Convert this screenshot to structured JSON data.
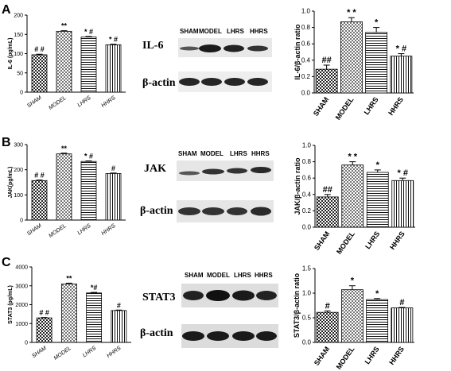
{
  "panels": [
    {
      "letter": "A",
      "blot_target": "IL-6",
      "blot_control": "β-actin",
      "lane_labels": [
        "SHAM",
        "MODEL",
        "LHRS",
        "HHRS"
      ]
    },
    {
      "letter": "B",
      "blot_target": "JAK",
      "blot_control": "β-actin",
      "lane_labels": [
        "SHAM",
        "MODEL",
        "LHRS",
        "HHRS"
      ]
    },
    {
      "letter": "C",
      "blot_target": "STAT3",
      "blot_control": "β-actin",
      "lane_labels": [
        "SHAM",
        "MODEL",
        "LHRS",
        "HHRS"
      ]
    }
  ],
  "chart_data": [
    {
      "type": "bar",
      "panel": "A",
      "role": "elisa",
      "ylabel": "IL-6  (pg/mL)",
      "categories": [
        "SHAM",
        "MODEL",
        "LHRS",
        "HHRS"
      ],
      "values": [
        97,
        158,
        143,
        123
      ],
      "errors": [
        1.5,
        1.5,
        1.5,
        1.5
      ],
      "annotations": [
        "# #",
        "**",
        "* #",
        "* #"
      ],
      "patterns": [
        "check",
        "dots",
        "hlines",
        "vlines"
      ],
      "italic_ticks": true,
      "ylim": [
        0,
        200
      ],
      "yticks": [
        0,
        50,
        100,
        150,
        200
      ]
    },
    {
      "type": "bar",
      "panel": "A",
      "role": "ratio",
      "ylabel": "IL-6/β-actin ratio",
      "categories": [
        "SHAM",
        "MODEL",
        "LHRS",
        "HHRS"
      ],
      "values": [
        0.29,
        0.87,
        0.74,
        0.45
      ],
      "errors": [
        0.05,
        0.05,
        0.06,
        0.03
      ],
      "annotations": [
        "##",
        "* *",
        "*",
        "* #"
      ],
      "patterns": [
        "check",
        "dots",
        "hlines",
        "vlines"
      ],
      "italic_ticks": false,
      "ylim": [
        0,
        1.0
      ],
      "yticks": [
        0,
        0.2,
        0.4,
        0.6,
        0.8,
        1.0
      ],
      "decimals": 1
    },
    {
      "type": "bar",
      "panel": "B",
      "role": "elisa",
      "ylabel": "JAK(pg/mL)",
      "categories": [
        "SHAM",
        "MODEL",
        "LHRS",
        "HHRS"
      ],
      "values": [
        157,
        263,
        233,
        185
      ],
      "errors": [
        2,
        3,
        2,
        2
      ],
      "annotations": [
        "# #",
        "**",
        "* #",
        "#"
      ],
      "patterns": [
        "check",
        "dots",
        "hlines",
        "vlines"
      ],
      "italic_ticks": true,
      "ylim": [
        0,
        300
      ],
      "yticks": [
        0,
        100,
        200,
        300
      ]
    },
    {
      "type": "bar",
      "panel": "B",
      "role": "ratio",
      "ylabel": "JAK/β-actin ratio",
      "categories": [
        "SHAM",
        "MODEL",
        "LHRS",
        "HHRS"
      ],
      "values": [
        0.37,
        0.76,
        0.67,
        0.57
      ],
      "errors": [
        0.03,
        0.04,
        0.03,
        0.03
      ],
      "annotations": [
        "##",
        "* *",
        "*",
        "* #"
      ],
      "patterns": [
        "check",
        "dots",
        "hlines",
        "vlines"
      ],
      "italic_ticks": false,
      "ylim": [
        0,
        1.0
      ],
      "yticks": [
        0,
        0.2,
        0.4,
        0.6,
        0.8,
        1.0
      ],
      "decimals": 1
    },
    {
      "type": "bar",
      "panel": "C",
      "role": "elisa",
      "ylabel": "STAT3 (pg/mL)",
      "categories": [
        "SHAM",
        "MODEL",
        "LHRS",
        "HHRS"
      ],
      "values": [
        1300,
        3100,
        2620,
        1690
      ],
      "errors": [
        20,
        40,
        30,
        25
      ],
      "annotations": [
        "# #",
        "**",
        "*#",
        "#"
      ],
      "patterns": [
        "check",
        "dots",
        "hlines",
        "vlines"
      ],
      "italic_ticks": true,
      "ylim": [
        0,
        4000
      ],
      "yticks": [
        0,
        1000,
        2000,
        3000,
        4000
      ]
    },
    {
      "type": "bar",
      "panel": "C",
      "role": "ratio",
      "ylabel": "STAT3/β-actin ratio",
      "categories": [
        "SHAM",
        "MODEL",
        "LHRS",
        "HHRS"
      ],
      "values": [
        0.61,
        1.07,
        0.87,
        0.7
      ],
      "errors": [
        0.03,
        0.08,
        0.02,
        0.01
      ],
      "annotations": [
        "#",
        "*",
        "*",
        "#"
      ],
      "patterns": [
        "check",
        "dots",
        "hlines",
        "vlines"
      ],
      "italic_ticks": false,
      "ylim": [
        0,
        1.5
      ],
      "yticks": [
        0,
        0.5,
        1.0,
        1.5
      ],
      "decimals": 1
    }
  ]
}
